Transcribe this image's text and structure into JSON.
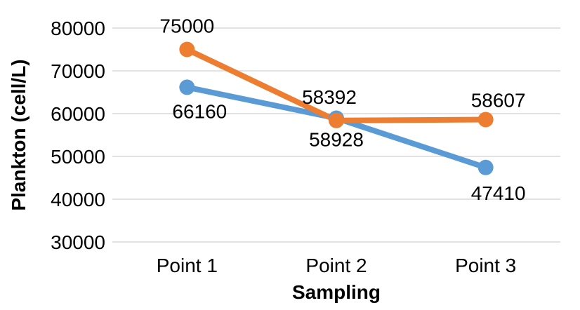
{
  "chart_data": {
    "type": "line",
    "categories": [
      "Point 1",
      "Point 2",
      "Point 3"
    ],
    "series": [
      {
        "values": [
          66160,
          58928,
          47410
        ],
        "color": "#5b9bd5",
        "labels": [
          "66160",
          "58928",
          "47410"
        ]
      },
      {
        "values": [
          75000,
          58392,
          58607
        ],
        "color": "#ed7d31",
        "labels": [
          "75000",
          "58392",
          "58607"
        ]
      }
    ],
    "xlabel": "Sampling",
    "ylabel": "Plankton (cell/L)",
    "ylim": [
      30000,
      80000
    ],
    "yticks": [
      "30000",
      "40000",
      "50000",
      "60000",
      "70000",
      "80000"
    ],
    "grid": true,
    "legend": "none"
  }
}
